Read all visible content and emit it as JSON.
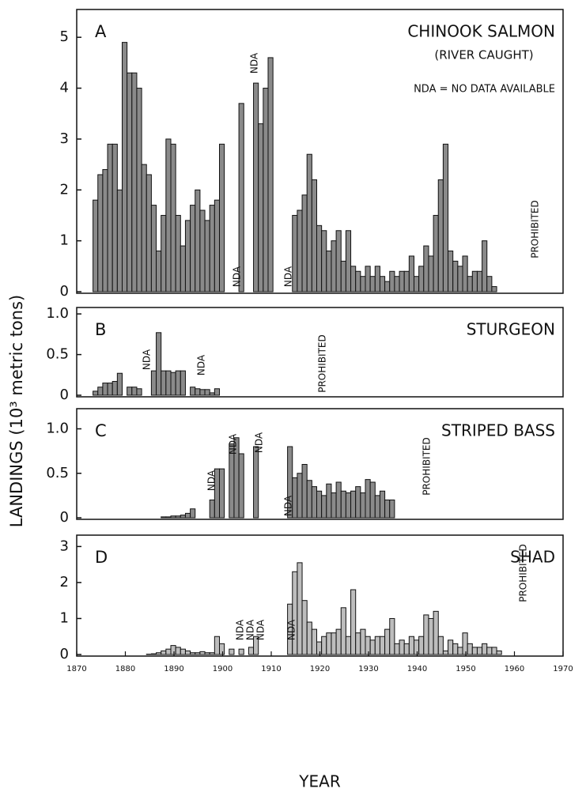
{
  "y_label": "LANDINGS (10³ metric tons)",
  "chart_data": [
    {
      "type": "bar",
      "letter": "A",
      "title": "CHINOOK SALMON",
      "subtitle": "(RIVER CAUGHT)",
      "note": "NDA = NO DATA AVAILABLE",
      "color": "#8a8a8a",
      "xlim": [
        1870,
        1970
      ],
      "ylim": [
        0,
        5.5
      ],
      "yticks": [
        0,
        1,
        2,
        3,
        4,
        5
      ],
      "annotations": [
        "NDA",
        "NDA",
        "NDA",
        "PROHIBITED"
      ],
      "x": [
        1874,
        1875,
        1876,
        1877,
        1878,
        1879,
        1880,
        1881,
        1882,
        1883,
        1884,
        1885,
        1886,
        1887,
        1888,
        1889,
        1890,
        1891,
        1892,
        1893,
        1894,
        1895,
        1896,
        1897,
        1898,
        1899,
        1900,
        1901,
        1902,
        1903,
        1904,
        1905,
        1906,
        1907,
        1908,
        1909,
        1910,
        1911,
        1912,
        1913,
        1914,
        1915,
        1916,
        1917,
        1918,
        1919,
        1920,
        1921,
        1922,
        1923,
        1924,
        1925,
        1926,
        1927,
        1928,
        1929,
        1930,
        1931,
        1932,
        1933,
        1934,
        1935,
        1936,
        1937,
        1938,
        1939,
        1940,
        1941,
        1942,
        1943,
        1944,
        1945,
        1946,
        1947,
        1948,
        1949,
        1950,
        1951,
        1952,
        1953,
        1954,
        1955,
        1956
      ],
      "values": [
        1.8,
        2.3,
        2.4,
        2.9,
        2.9,
        2.0,
        4.9,
        4.3,
        4.3,
        4.0,
        2.5,
        2.3,
        1.7,
        0.8,
        1.5,
        3.0,
        2.9,
        1.5,
        0.9,
        1.4,
        1.7,
        2.0,
        1.6,
        1.4,
        1.7,
        1.8,
        2.9,
        null,
        null,
        null,
        3.7,
        null,
        null,
        4.1,
        3.3,
        4.0,
        4.6,
        null,
        null,
        null,
        null,
        1.5,
        1.6,
        1.9,
        2.7,
        2.2,
        1.3,
        1.2,
        0.8,
        1.0,
        1.2,
        0.6,
        1.2,
        0.5,
        0.4,
        0.3,
        0.5,
        0.3,
        0.5,
        0.3,
        0.2,
        0.4,
        0.3,
        0.4,
        0.4,
        0.7,
        0.3,
        0.5,
        0.9,
        0.7,
        1.5,
        2.2,
        2.9,
        0.8,
        0.6,
        0.5,
        0.7,
        0.3,
        0.4,
        0.4,
        1.0,
        0.3,
        0.1
      ]
    },
    {
      "type": "bar",
      "letter": "B",
      "title": "STURGEON",
      "color": "#8a8a8a",
      "xlim": [
        1870,
        1970
      ],
      "ylim": [
        0,
        1.05
      ],
      "yticks": [
        0,
        0.5,
        {
          "value": 1,
          "label": "1.0"
        }
      ],
      "annotations": [
        "NDA",
        "NDA",
        "PROHIBITED"
      ],
      "x": [
        1874,
        1875,
        1876,
        1877,
        1878,
        1879,
        1880,
        1881,
        1882,
        1883,
        1884,
        1885,
        1886,
        1887,
        1888,
        1889,
        1890,
        1891,
        1892,
        1893,
        1894,
        1895,
        1896,
        1897,
        1898,
        1899
      ],
      "values": [
        0.05,
        0.1,
        0.15,
        0.15,
        0.17,
        0.27,
        null,
        0.1,
        0.1,
        0.08,
        null,
        null,
        0.3,
        0.77,
        0.3,
        0.3,
        0.28,
        0.3,
        0.3,
        null,
        0.1,
        0.08,
        0.07,
        0.07,
        0.03,
        0.08
      ]
    },
    {
      "type": "bar",
      "letter": "C",
      "title": "STRIPED BASS",
      "color": "#8a8a8a",
      "xlim": [
        1870,
        1970
      ],
      "ylim": [
        0,
        1.2
      ],
      "yticks": [
        0,
        0.5,
        {
          "value": 1,
          "label": "1.0"
        }
      ],
      "annotations": [
        "NDA",
        "NDA",
        "NDA",
        "NDA",
        "PROHIBITED"
      ],
      "x": [
        1888,
        1889,
        1890,
        1891,
        1892,
        1893,
        1894,
        1895,
        1896,
        1897,
        1898,
        1899,
        1900,
        1901,
        1902,
        1903,
        1904,
        1905,
        1906,
        1907,
        1908,
        1909,
        1910,
        1911,
        1912,
        1913,
        1914,
        1915,
        1916,
        1917,
        1918,
        1919,
        1920,
        1921,
        1922,
        1923,
        1924,
        1925,
        1926,
        1927,
        1928,
        1929,
        1930,
        1931,
        1932,
        1933,
        1934,
        1935
      ],
      "values": [
        0.01,
        0.01,
        0.02,
        0.02,
        0.03,
        0.05,
        0.1,
        null,
        null,
        null,
        0.2,
        0.55,
        0.55,
        null,
        0.83,
        0.9,
        0.72,
        null,
        null,
        0.8,
        null,
        null,
        null,
        null,
        null,
        null,
        0.8,
        0.45,
        0.5,
        0.6,
        0.42,
        0.35,
        0.3,
        0.25,
        0.38,
        0.28,
        0.4,
        0.3,
        0.28,
        0.3,
        0.35,
        0.28,
        0.43,
        0.4,
        0.25,
        0.3,
        0.2,
        0.2
      ]
    },
    {
      "type": "bar",
      "letter": "D",
      "title": "SHAD",
      "color": "#bdbdbd",
      "xlim": [
        1870,
        1970
      ],
      "ylim": [
        0,
        3.25
      ],
      "yticks": [
        0,
        1,
        2,
        3
      ],
      "xticks": [
        1870,
        1880,
        1890,
        1900,
        1910,
        1920,
        1930,
        1940,
        1950,
        1960,
        1970
      ],
      "xlabel": "YEAR",
      "annotations": [
        "NDA",
        "NDA",
        "NDA",
        "NDA",
        "PROHIBITED"
      ],
      "x": [
        1885,
        1886,
        1887,
        1888,
        1889,
        1890,
        1891,
        1892,
        1893,
        1894,
        1895,
        1896,
        1897,
        1898,
        1899,
        1900,
        1901,
        1902,
        1903,
        1904,
        1905,
        1906,
        1907,
        1908,
        1909,
        1910,
        1911,
        1912,
        1913,
        1914,
        1915,
        1916,
        1917,
        1918,
        1919,
        1920,
        1921,
        1922,
        1923,
        1924,
        1925,
        1926,
        1927,
        1928,
        1929,
        1930,
        1931,
        1932,
        1933,
        1934,
        1935,
        1936,
        1937,
        1938,
        1939,
        1940,
        1941,
        1942,
        1943,
        1944,
        1945,
        1946,
        1947,
        1948,
        1949,
        1950,
        1951,
        1952,
        1953,
        1954,
        1955,
        1956,
        1957
      ],
      "values": [
        0.01,
        0.02,
        0.05,
        0.1,
        0.15,
        0.25,
        0.2,
        0.15,
        0.1,
        0.05,
        0.05,
        0.08,
        0.05,
        0.05,
        0.5,
        0.3,
        null,
        0.15,
        null,
        0.15,
        null,
        0.2,
        0.5,
        null,
        null,
        null,
        null,
        null,
        null,
        1.4,
        2.3,
        2.55,
        1.5,
        0.9,
        0.7,
        0.35,
        0.5,
        0.6,
        0.6,
        0.7,
        1.3,
        0.5,
        1.8,
        0.6,
        0.7,
        0.5,
        0.4,
        0.5,
        0.5,
        0.7,
        1.0,
        0.3,
        0.4,
        0.3,
        0.5,
        0.4,
        0.5,
        1.1,
        1.0,
        1.2,
        0.5,
        0.1,
        0.4,
        0.3,
        0.2,
        0.6,
        0.3,
        0.2,
        0.2,
        0.3,
        0.2,
        0.2,
        0.1
      ]
    }
  ]
}
